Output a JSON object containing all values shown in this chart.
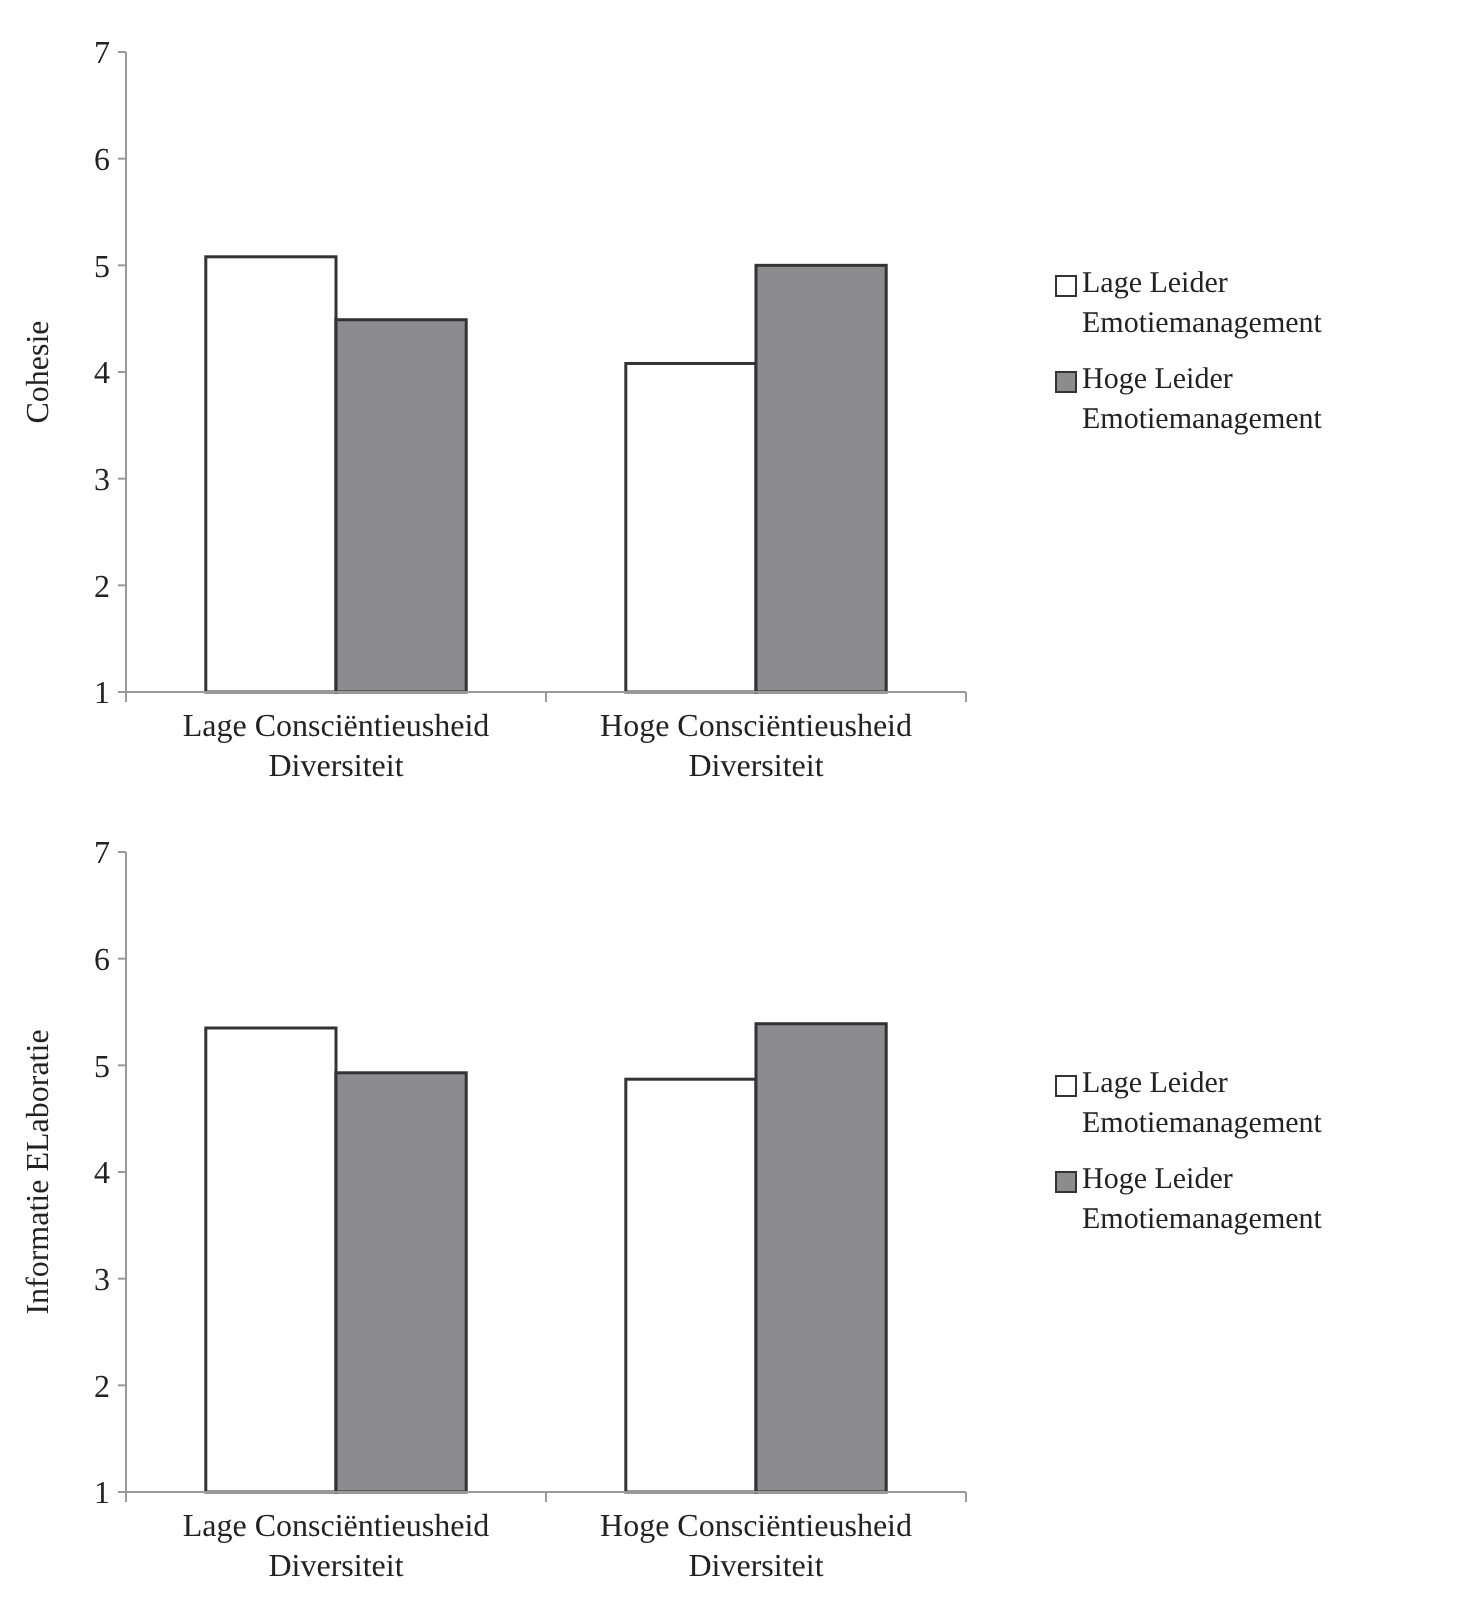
{
  "chart_data": [
    {
      "type": "bar",
      "ylabel": "Cohesie",
      "categories": [
        "Lage Consciëntieusheid\nDiversiteit",
        "Hoge Consciëntieusheid\nDiversiteit"
      ],
      "series": [
        {
          "name": "Lage Leider\nEmotiemanagement",
          "color": "#ffffff",
          "values": [
            5.08,
            4.08
          ]
        },
        {
          "name": "Hoge Leider\nEmotiemanagement",
          "color": "#8c8c8e",
          "values": [
            4.49,
            5.0
          ]
        }
      ],
      "ylim": [
        1,
        7
      ],
      "yticks": [
        1,
        2,
        3,
        4,
        5,
        6,
        7
      ],
      "legend": "right"
    },
    {
      "type": "bar",
      "ylabel": "Informatie ELaboratie",
      "categories": [
        "Lage Consciëntieusheid\nDiversiteit",
        "Hoge Consciëntieusheid\nDiversiteit"
      ],
      "series": [
        {
          "name": "Lage Leider\nEmotiemanagement",
          "color": "#ffffff",
          "values": [
            5.35,
            4.87
          ]
        },
        {
          "name": "Hoge Leider\nEmotiemanagement",
          "color": "#8c8c8e",
          "values": [
            4.93,
            5.39
          ]
        }
      ],
      "ylim": [
        1,
        7
      ],
      "yticks": [
        1,
        2,
        3,
        4,
        5,
        6,
        7
      ],
      "legend": "right"
    }
  ]
}
